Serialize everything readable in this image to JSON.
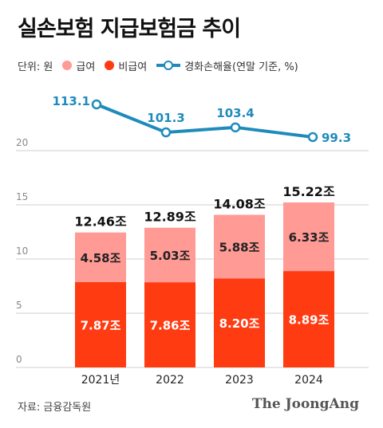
{
  "chart_data": {
    "type": "bar",
    "title": "실손보험 지급보험금 추이",
    "unit_label": "단위: 원",
    "categories": [
      "2021년",
      "2022",
      "2023",
      "2024"
    ],
    "series": [
      {
        "name": "비급여",
        "values": [
          7.87,
          7.86,
          8.2,
          8.89
        ],
        "labels": [
          "7.87조",
          "7.86조",
          "8.20조",
          "8.89조"
        ],
        "color": "#ff3b12"
      },
      {
        "name": "급여",
        "values": [
          4.58,
          5.03,
          5.88,
          6.33
        ],
        "labels": [
          "4.58조",
          "5.03조",
          "5.88조",
          "6.33조"
        ],
        "color": "#ff9a95"
      }
    ],
    "totals": [
      12.46,
      12.89,
      14.08,
      15.22
    ],
    "total_labels": [
      "12.46조",
      "12.89조",
      "14.08조",
      "15.22조"
    ],
    "line_series": {
      "name": "경화손해율(연말 기준, %)",
      "values": [
        113.1,
        101.3,
        103.4,
        99.3
      ],
      "labels": [
        "113.1",
        "101.3",
        "103.4",
        "99.3"
      ],
      "color": "#1f8bbb"
    },
    "yticks": [
      "0",
      "5",
      "10",
      "15",
      "20"
    ],
    "ylim": [
      0,
      20
    ],
    "stacked": true,
    "grid": true
  },
  "footer": {
    "source": "자료: 금융감독원",
    "logo": "The JoongAng"
  }
}
